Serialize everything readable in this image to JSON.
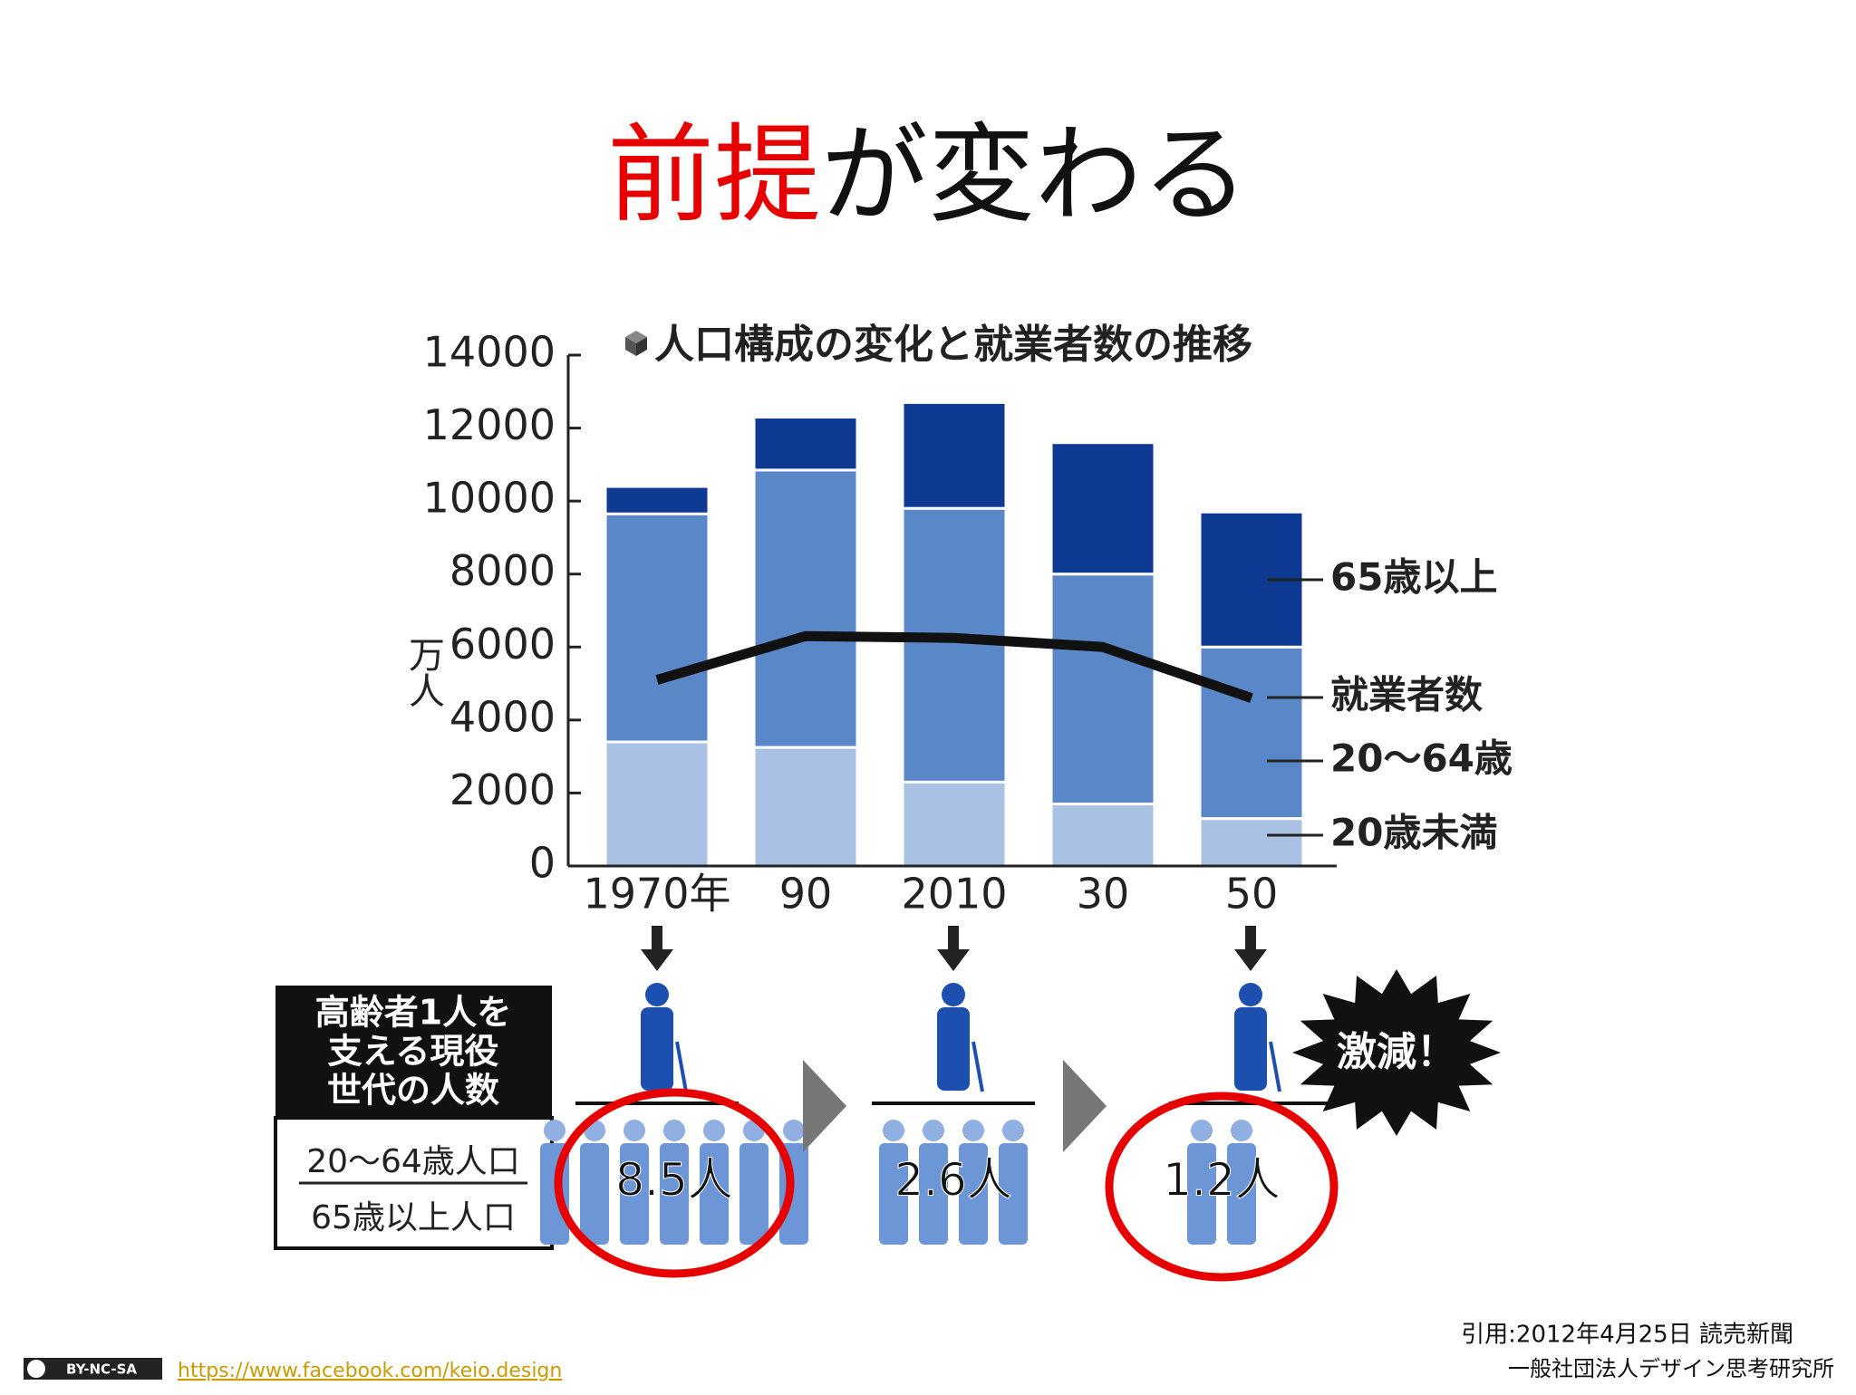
{
  "slide": {
    "title": [
      "前提",
      "が変わる"
    ]
  },
  "chart_data": {
    "type": "bar",
    "stacked": true,
    "title": "人口構成の変化と就業者数の推移",
    "y_label": "万人",
    "categories": [
      "1970年",
      "90",
      "2010",
      "30",
      "50"
    ],
    "series": [
      {
        "name": "20歳未満",
        "color": "#a9c1e3",
        "values": [
          3400,
          3250,
          2300,
          1700,
          1300
        ]
      },
      {
        "name": "20〜64歳",
        "color": "#5a87c8",
        "values": [
          6250,
          7600,
          7500,
          6300,
          4700
        ]
      },
      {
        "name": "65歳以上",
        "color": "#0e3a94",
        "values": [
          750,
          1450,
          2900,
          3600,
          3700
        ]
      },
      {
        "name": "就業者数",
        "type": "line",
        "color": "#111111",
        "values": [
          5100,
          6300,
          6250,
          6000,
          4600
        ]
      }
    ],
    "ylim": [
      0,
      14000
    ],
    "yticks": [
      0,
      2000,
      4000,
      6000,
      8000,
      10000,
      12000,
      14000
    ]
  },
  "infographic": {
    "heading": [
      "高齢者1人を",
      "支える現役",
      "世代の人数"
    ],
    "numerator": "20〜64歳人口",
    "denominator": "65歳以上人口",
    "values": [
      "8.5人",
      "2.6人",
      "1.2人"
    ],
    "alert": "激減！"
  },
  "footer": {
    "citation": "引用:2012年4月25日 読売新聞",
    "organization": "一般社団法人デザイン思考研究所",
    "license": "BY-NC-SA",
    "link": "https://www.facebook.com/keio.design"
  }
}
